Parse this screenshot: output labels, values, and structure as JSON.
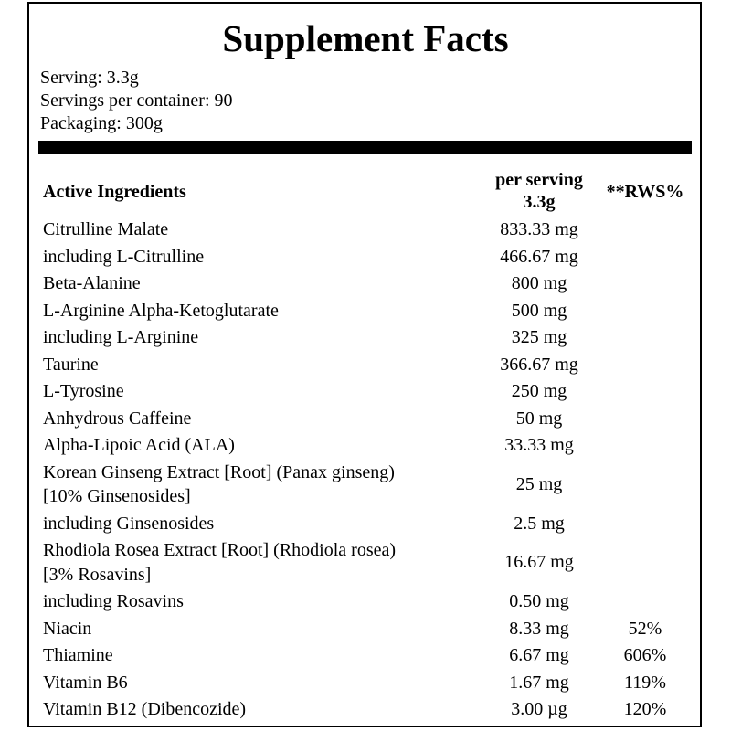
{
  "title": "Supplement Facts",
  "info": [
    "Serving: 3.3g",
    "Servings per container: 90",
    "Packaging: 300g"
  ],
  "table": {
    "header": {
      "ingredient": "Active Ingredients",
      "per_serving": [
        "per serving",
        "3.3g"
      ],
      "rws": "**RWS%"
    },
    "rows": [
      {
        "name": [
          "Citrulline Malate"
        ],
        "amount": "833.33 mg"
      },
      {
        "name": [
          "including L-Citrulline"
        ],
        "amount": "466.67 mg"
      },
      {
        "name": [
          "Beta-Alanine"
        ],
        "amount": "800 mg"
      },
      {
        "name": [
          "L-Arginine Alpha-Ketoglutarate"
        ],
        "amount": "500 mg"
      },
      {
        "name": [
          "including L-Arginine"
        ],
        "amount": "325 mg"
      },
      {
        "name": [
          "Taurine"
        ],
        "amount": "366.67 mg"
      },
      {
        "name": [
          "L-Tyrosine"
        ],
        "amount": "250 mg"
      },
      {
        "name": [
          "Anhydrous Caffeine"
        ],
        "amount": "50 mg"
      },
      {
        "name": [
          "Alpha-Lipoic Acid (ALA)"
        ],
        "amount": "33.33 mg"
      },
      {
        "name": [
          "Korean Ginseng Extract [Root] (Panax ginseng)",
          "[10% Ginsenosides]"
        ],
        "amount": "25 mg"
      },
      {
        "name": [
          "including Ginsenosides"
        ],
        "amount": "2.5 mg"
      },
      {
        "name": [
          "Rhodiola Rosea Extract [Root] (Rhodiola rosea)",
          "[3% Rosavins]"
        ],
        "amount": "16.67 mg"
      },
      {
        "name": [
          "including Rosavins"
        ],
        "amount": "0.50 mg"
      },
      {
        "name": [
          "Niacin"
        ],
        "amount": "8.33 mg",
        "rws": "52%"
      },
      {
        "name": [
          "Thiamine"
        ],
        "amount": "6.67 mg",
        "rws": "606%"
      },
      {
        "name": [
          "Vitamin B6"
        ],
        "amount": "1.67 mg",
        "rws": "119%"
      },
      {
        "name": [
          "Vitamin B12 (Dibencozide)"
        ],
        "amount": "3.00 µg",
        "rws": "120%"
      }
    ]
  }
}
